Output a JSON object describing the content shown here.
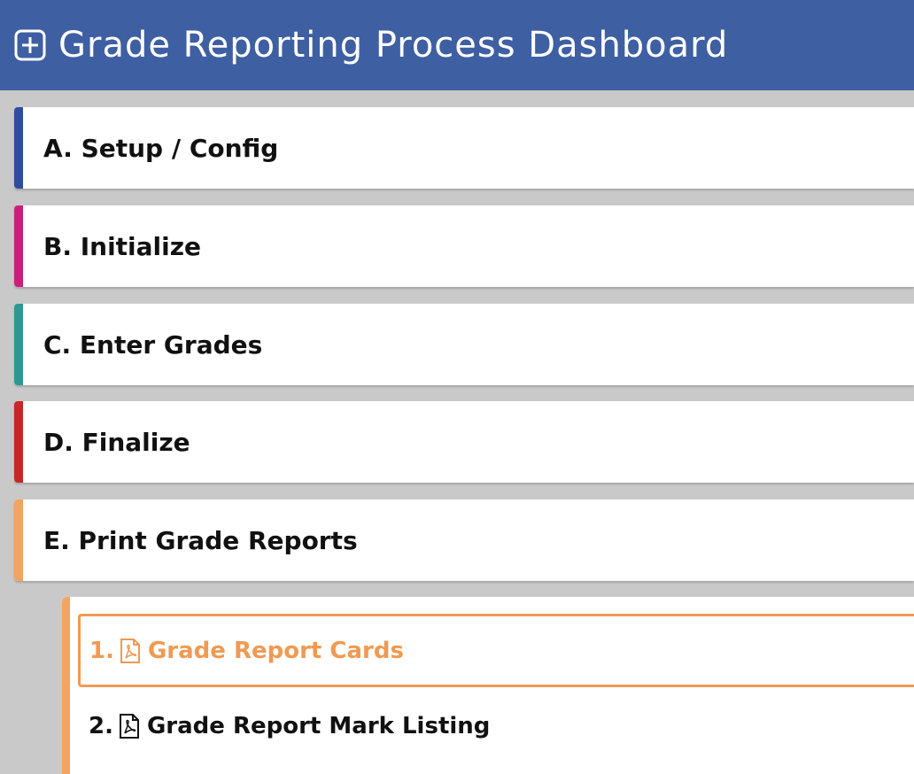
{
  "header": {
    "title": "Grade Reporting Process Dashboard",
    "icon": "plus-square-icon",
    "background": "#3f5fa3"
  },
  "sections": [
    {
      "label": "A. Setup / Config",
      "color": "#2f4da0"
    },
    {
      "label": "B. Initialize",
      "color": "#c8207e"
    },
    {
      "label": "C. Enter Grades",
      "color": "#2a9a93"
    },
    {
      "label": "D. Finalize",
      "color": "#c62828"
    },
    {
      "label": "E. Print Grade Reports",
      "color": "#f4a460",
      "expanded": true
    }
  ],
  "sub_items": [
    {
      "number": "1.",
      "label": "Grade Report Cards",
      "icon": "pdf-icon",
      "active": true,
      "color": "#f09a52"
    },
    {
      "number": "2.",
      "label": "Grade Report Mark Listing",
      "icon": "pdf-icon",
      "active": false
    }
  ]
}
